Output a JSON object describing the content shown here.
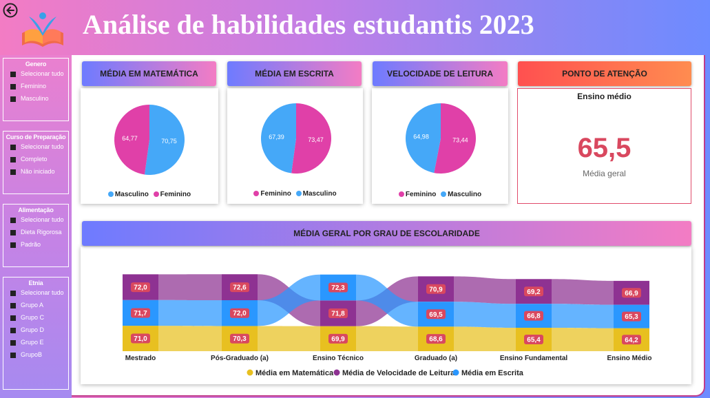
{
  "header": {
    "title": "Análise de habilidades estudantis 2023",
    "back_icon": "back-arrow-icon",
    "logo_icon": "book-student-logo"
  },
  "filters": [
    {
      "title": "Genero",
      "options": [
        "Selecionar tudo",
        "Feminino",
        "Masculino"
      ]
    },
    {
      "title": "Curso de Preparação",
      "options": [
        "Selecionar tudo",
        "Completo",
        "Não iniciado"
      ]
    },
    {
      "title": "Alimentação",
      "options": [
        "Selecionar tudo",
        "Dieta Rigorosa",
        "Padrão"
      ]
    },
    {
      "title": "Etnia",
      "options": [
        "Selecionar tudo",
        "Grupo A",
        "Grupo C",
        "Grupo D",
        "Grupo E",
        "GrupoB"
      ]
    }
  ],
  "attention": {
    "title": "PONTO DE ATENÇÃO",
    "subtitle": "Ensino médio",
    "value": "65,5",
    "label": "Média geral"
  },
  "colors": {
    "feminino": "#e040a8",
    "masculino": "#45a8f8",
    "matematica": "#e8c020",
    "leitura": "#8e3292",
    "escrita": "#2a97ff",
    "label_bg": "#d9485f"
  },
  "chart_data": [
    {
      "type": "pie",
      "title": "MÉDIA EM MATEMÁTICA",
      "slices": [
        {
          "name": "Masculino",
          "value": 70.75,
          "label": "70,75"
        },
        {
          "name": "Feminino",
          "value": 64.77,
          "label": "64,77"
        }
      ],
      "legend": [
        "Masculino",
        "Feminino"
      ]
    },
    {
      "type": "pie",
      "title": "MÉDIA EM ESCRITA",
      "slices": [
        {
          "name": "Feminino",
          "value": 73.47,
          "label": "73,47"
        },
        {
          "name": "Masculino",
          "value": 67.39,
          "label": "67,39"
        }
      ],
      "legend": [
        "Feminino",
        "Masculino"
      ]
    },
    {
      "type": "pie",
      "title": "VELOCIDADE DE LEITURA",
      "slices": [
        {
          "name": "Feminino",
          "value": 73.44,
          "label": "73,44"
        },
        {
          "name": "Masculino",
          "value": 64.98,
          "label": "64,98"
        }
      ],
      "legend": [
        "Feminino",
        "Masculino"
      ]
    },
    {
      "type": "ribbon",
      "title": "MÉDIA GERAL POR GRAU DE ESCOLARIDADE",
      "categories": [
        "Mestrado",
        "Pós-Graduado (a)",
        "Ensino Técnico",
        "Graduado (a)",
        "Ensino Fundamental",
        "Ensino Médio"
      ],
      "series": [
        {
          "name": "Média em Matemática",
          "key": "matematica",
          "values": [
            71.0,
            70.3,
            69.9,
            68.6,
            65.4,
            64.2
          ],
          "labels": [
            "71,0",
            "70,3",
            "69,9",
            "68,6",
            "65,4",
            "64,2"
          ]
        },
        {
          "name": "Média de Velocidade de Leitura",
          "key": "leitura",
          "values": [
            72.0,
            72.6,
            71.8,
            70.9,
            69.2,
            66.9
          ],
          "labels": [
            "72,0",
            "72,6",
            "71,8",
            "70,9",
            "69,2",
            "66,9"
          ]
        },
        {
          "name": "Média em Escrita",
          "key": "escrita",
          "values": [
            71.7,
            72.0,
            72.3,
            69.5,
            66.8,
            65.3
          ],
          "labels": [
            "71,7",
            "72,0",
            "72,3",
            "69,5",
            "66,8",
            "65,3"
          ]
        }
      ]
    }
  ]
}
